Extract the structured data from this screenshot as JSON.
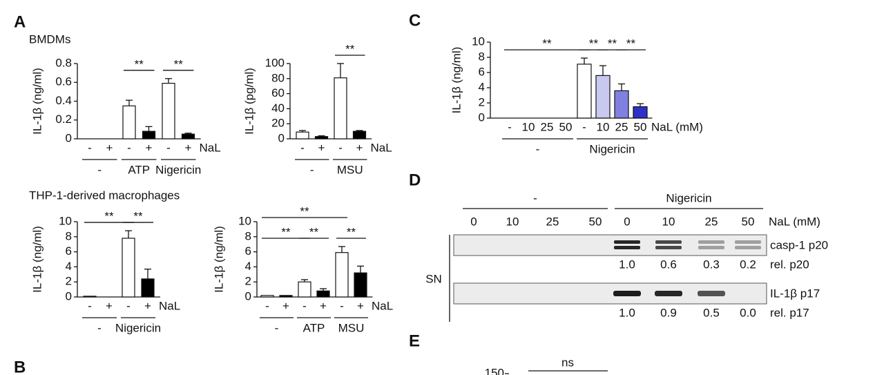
{
  "panel_labels": [
    "A",
    "B",
    "C",
    "D",
    "E"
  ],
  "chart_data": [
    {
      "type": "bar",
      "title": "BMDMs",
      "y_label": "IL-1β (ng/ml)",
      "x_label": "NaL",
      "categories": [
        "-",
        "+",
        "-",
        "+",
        "-",
        "+"
      ],
      "values": [
        0,
        0,
        0.35,
        0.08,
        0.59,
        0.05
      ],
      "errors": [
        0,
        0,
        0.06,
        0.05,
        0.05,
        0.01
      ],
      "colors": [
        "#ffffff",
        "#000000",
        "#ffffff",
        "#000000",
        "#ffffff",
        "#000000"
      ],
      "ylim": [
        0,
        0.8
      ],
      "yticks": [
        0,
        0.2,
        0.4,
        0.6,
        0.8
      ],
      "groups": [
        {
          "label": "-",
          "from": 0,
          "to": 1
        },
        {
          "label": "ATP",
          "from": 2,
          "to": 3
        },
        {
          "label": "Nigericin",
          "from": 4,
          "to": 5
        }
      ],
      "brackets": [
        {
          "label": "**",
          "from": 2,
          "to": 3
        },
        {
          "label": "**",
          "from": 4,
          "to": 5
        }
      ]
    },
    {
      "type": "bar",
      "y_label": "IL-1β (pg/ml)",
      "x_label": "NaL",
      "categories": [
        "-",
        "+",
        "-",
        "+"
      ],
      "values": [
        9,
        3,
        81,
        10
      ],
      "errors": [
        2,
        1,
        19,
        1
      ],
      "colors": [
        "#ffffff",
        "#000000",
        "#ffffff",
        "#000000"
      ],
      "ylim": [
        0,
        100
      ],
      "yticks": [
        0,
        20,
        40,
        60,
        80,
        100
      ],
      "groups": [
        {
          "label": "-",
          "from": 0,
          "to": 1
        },
        {
          "label": "MSU",
          "from": 2,
          "to": 3
        }
      ],
      "brackets": [
        {
          "label": "**",
          "from": 2,
          "to": 3
        }
      ]
    },
    {
      "type": "bar",
      "title": "THP-1-derived macrophages",
      "y_label": "IL-1β (ng/ml)",
      "x_label": "NaL",
      "categories": [
        "-",
        "+",
        "-",
        "+"
      ],
      "values": [
        0.1,
        0,
        7.8,
        2.4
      ],
      "errors": [
        0,
        0,
        1.0,
        1.3
      ],
      "colors": [
        "#ffffff",
        "#000000",
        "#ffffff",
        "#000000"
      ],
      "ylim": [
        0,
        10
      ],
      "yticks": [
        0,
        2,
        4,
        6,
        8,
        10
      ],
      "groups": [
        {
          "label": "-",
          "from": 0,
          "to": 1
        },
        {
          "label": "Nigericin",
          "from": 2,
          "to": 3
        }
      ],
      "brackets": [
        {
          "label": "**",
          "from": 0,
          "to": 2
        },
        {
          "label": "**",
          "from": 2,
          "to": 3
        }
      ]
    },
    {
      "type": "bar",
      "y_label": "IL-1β (ng/ml)",
      "x_label": "NaL",
      "categories": [
        "-",
        "+",
        "-",
        "+",
        "-",
        "+"
      ],
      "values": [
        0.2,
        0.2,
        2.0,
        0.8,
        5.9,
        3.2
      ],
      "errors": [
        0,
        0,
        0.3,
        0.3,
        0.8,
        0.9
      ],
      "colors": [
        "#ffffff",
        "#000000",
        "#ffffff",
        "#000000",
        "#ffffff",
        "#000000"
      ],
      "ylim": [
        0,
        10
      ],
      "yticks": [
        0,
        2,
        4,
        6,
        8,
        10
      ],
      "groups": [
        {
          "label": "-",
          "from": 0,
          "to": 1
        },
        {
          "label": "ATP",
          "from": 2,
          "to": 3
        },
        {
          "label": "MSU",
          "from": 4,
          "to": 5
        }
      ],
      "brackets": [
        {
          "label": "**",
          "from": 0,
          "to": 2
        },
        {
          "label": "**",
          "from": 2,
          "to": 3
        },
        {
          "label": "**",
          "from": 4,
          "to": 5
        },
        {
          "label": "**",
          "from": 0,
          "to": 4
        }
      ]
    },
    {
      "type": "bar",
      "y_label": "IL-1β (ng/ml)",
      "x_label": "NaL (mM)",
      "categories": [
        "-",
        "10",
        "25",
        "50",
        "-",
        "10",
        "25",
        "50"
      ],
      "values": [
        0,
        0,
        0,
        0,
        7.1,
        5.6,
        3.6,
        1.5
      ],
      "errors": [
        0,
        0,
        0,
        0,
        0.8,
        1.3,
        0.9,
        0.4
      ],
      "colors": [
        "#ffffff",
        "#c8c8f0",
        "#8080e0",
        "#3030c8",
        "#ffffff",
        "#c8c8f0",
        "#8080e0",
        "#3030c8"
      ],
      "ylim": [
        0,
        10
      ],
      "yticks": [
        0,
        2,
        4,
        6,
        8,
        10
      ],
      "groups": [
        {
          "label": "-",
          "from": 0,
          "to": 3
        },
        {
          "label": "Nigericin",
          "from": 4,
          "to": 7
        }
      ],
      "brackets": [
        {
          "label": "**",
          "from": 0,
          "to": 4
        },
        {
          "label": "**",
          "from": 4,
          "to": 5
        },
        {
          "label": "**",
          "from": 5,
          "to": 6
        },
        {
          "label": "**",
          "from": 6,
          "to": 7
        }
      ]
    }
  ],
  "blot": {
    "groups": [
      "-",
      "Nigericin"
    ],
    "lanes": [
      0,
      10,
      25,
      50,
      0,
      10,
      25,
      50
    ],
    "lane_label": "NaL (mM)",
    "fraction": "SN",
    "rows": [
      {
        "label": "casp-1 p20",
        "rel_label": "rel. p20",
        "rel_values": [
          "1.0",
          "0.6",
          "0.3",
          "0.2"
        ]
      },
      {
        "label": "IL-1β p17",
        "rel_label": "rel. p17",
        "rel_values": [
          "1.0",
          "0.9",
          "0.5",
          "0.0"
        ]
      }
    ]
  },
  "panel_e": {
    "annotation": "ns",
    "yticks": [
      150
    ]
  }
}
